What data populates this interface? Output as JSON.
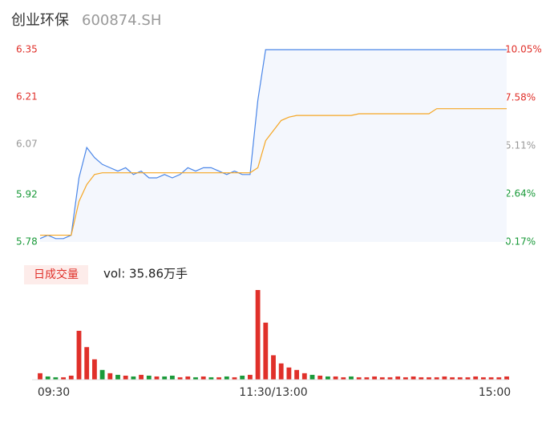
{
  "chart_data": {
    "type": "line",
    "title": "创业环保",
    "subtitle": "600874.SH",
    "x_labels": [
      "09:30",
      "11:30/13:00",
      "15:00"
    ],
    "ylim": [
      5.78,
      6.35
    ],
    "yticks": [
      5.78,
      5.92,
      6.07,
      6.21,
      6.35
    ],
    "y2lim": [
      0.17,
      10.05
    ],
    "y2ticks": [
      {
        "value": 0.17,
        "label": "0.17%"
      },
      {
        "value": 2.64,
        "label": "2.64%"
      },
      {
        "value": 5.11,
        "label": "5.11%"
      },
      {
        "value": 7.58,
        "label": "7.58%"
      },
      {
        "value": 10.05,
        "label": "10.05%"
      }
    ],
    "ytick_colors": [
      "#1a9a3a",
      "#1a9a3a",
      "#999999",
      "#e0302a",
      "#e0302a"
    ],
    "series": [
      {
        "name": "price",
        "color": "#4a86e8",
        "values": [
          5.79,
          5.8,
          5.79,
          5.79,
          5.8,
          5.97,
          6.06,
          6.03,
          6.01,
          6.0,
          5.99,
          6.0,
          5.98,
          5.99,
          5.97,
          5.97,
          5.98,
          5.97,
          5.98,
          6.0,
          5.99,
          6.0,
          6.0,
          5.99,
          5.98,
          5.99,
          5.98,
          5.98,
          6.2,
          6.35,
          6.35,
          6.35,
          6.35,
          6.35,
          6.35,
          6.35,
          6.35,
          6.35,
          6.35,
          6.35,
          6.35,
          6.35,
          6.35,
          6.35,
          6.35,
          6.35,
          6.35,
          6.35,
          6.35,
          6.35,
          6.35,
          6.35,
          6.35,
          6.35,
          6.35,
          6.35,
          6.35,
          6.35,
          6.35,
          6.35,
          6.35
        ]
      },
      {
        "name": "average",
        "color": "#f5a623",
        "values": [
          5.8,
          5.8,
          5.8,
          5.8,
          5.8,
          5.9,
          5.95,
          5.98,
          5.985,
          5.985,
          5.985,
          5.985,
          5.985,
          5.985,
          5.985,
          5.985,
          5.985,
          5.985,
          5.985,
          5.985,
          5.985,
          5.985,
          5.985,
          5.985,
          5.985,
          5.985,
          5.985,
          5.985,
          6.0,
          6.08,
          6.11,
          6.14,
          6.15,
          6.155,
          6.155,
          6.155,
          6.155,
          6.155,
          6.155,
          6.155,
          6.155,
          6.16,
          6.16,
          6.16,
          6.16,
          6.16,
          6.16,
          6.16,
          6.16,
          6.16,
          6.16,
          6.175,
          6.175,
          6.175,
          6.175,
          6.175,
          6.175,
          6.175,
          6.175,
          6.175,
          6.175
        ]
      }
    ],
    "volume": {
      "type": "bar",
      "label": "日成交量",
      "annotation": "vol: 35.86万手",
      "values": [
        8,
        4,
        3,
        3,
        5,
        60,
        40,
        25,
        12,
        8,
        6,
        5,
        4,
        6,
        5,
        4,
        4,
        5,
        3,
        4,
        3,
        4,
        3,
        3,
        4,
        3,
        5,
        6,
        110,
        70,
        30,
        20,
        15,
        12,
        8,
        6,
        5,
        4,
        4,
        3,
        4,
        3,
        3,
        4,
        3,
        3,
        4,
        3,
        4,
        3,
        3,
        3,
        4,
        3,
        3,
        3,
        4,
        3,
        3,
        3,
        4
      ],
      "colors": [
        "#e0302a",
        "#1a9a3a",
        "#1a9a3a",
        "#e0302a",
        "#e0302a",
        "#e0302a",
        "#e0302a",
        "#e0302a",
        "#1a9a3a",
        "#e0302a",
        "#1a9a3a",
        "#e0302a",
        "#1a9a3a",
        "#e0302a",
        "#1a9a3a",
        "#e0302a",
        "#1a9a3a",
        "#1a9a3a",
        "#e0302a",
        "#e0302a",
        "#1a9a3a",
        "#e0302a",
        "#1a9a3a",
        "#e0302a",
        "#1a9a3a",
        "#e0302a",
        "#1a9a3a",
        "#e0302a",
        "#e0302a",
        "#e0302a",
        "#e0302a",
        "#e0302a",
        "#e0302a",
        "#e0302a",
        "#e0302a",
        "#1a9a3a",
        "#e0302a",
        "#1a9a3a",
        "#e0302a",
        "#e0302a",
        "#1a9a3a",
        "#e0302a",
        "#e0302a",
        "#e0302a",
        "#e0302a",
        "#e0302a",
        "#e0302a",
        "#e0302a",
        "#e0302a",
        "#e0302a",
        "#e0302a",
        "#e0302a",
        "#e0302a",
        "#e0302a",
        "#e0302a",
        "#e0302a",
        "#e0302a",
        "#e0302a",
        "#e0302a",
        "#e0302a",
        "#e0302a"
      ]
    }
  }
}
